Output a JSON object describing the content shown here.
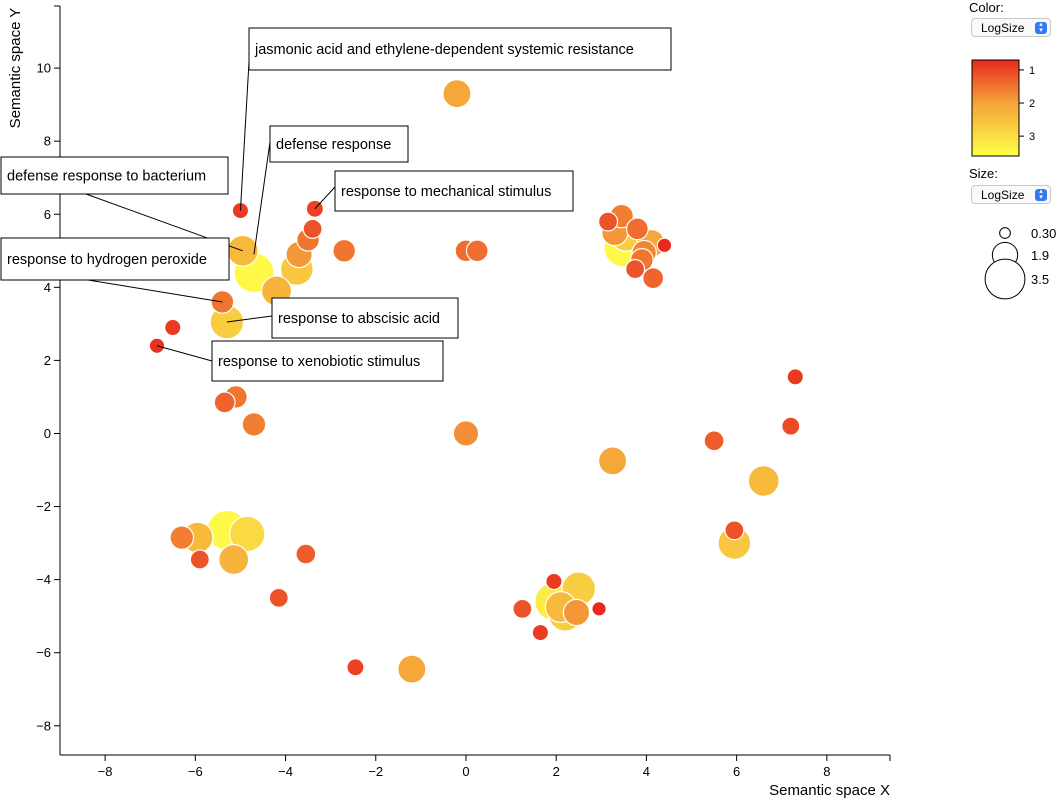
{
  "controls": {
    "color_label": "Color:",
    "color_value": "LogSize",
    "color_options": [
      "LogSize"
    ],
    "size_label": "Size:",
    "size_value": "LogSize",
    "size_options": [
      "LogSize"
    ]
  },
  "chart_data": {
    "type": "scatter",
    "xlabel": "Semantic space X",
    "ylabel": "Semantic space Y",
    "xlim": [
      -9,
      9.4
    ],
    "ylim": [
      -8.8,
      11.7
    ],
    "xticks": [
      -8,
      -6,
      -4,
      -2,
      0,
      2,
      4,
      6,
      8
    ],
    "yticks": [
      -8,
      -6,
      -4,
      -2,
      0,
      2,
      4,
      6,
      8,
      10
    ],
    "tick_labels_x": [
      "−8",
      "−6",
      "−4",
      "−2",
      "0",
      "2",
      "4",
      "6",
      "8"
    ],
    "tick_labels_y": [
      "−8",
      "−6",
      "−4",
      "−2",
      "0",
      "2",
      "4",
      "6",
      "8",
      "10"
    ],
    "color_scale": {
      "variable": "LogSize",
      "domain": [
        0.7,
        3.6
      ],
      "colors": [
        "#e8291e",
        "#f5a43a",
        "#ffff48"
      ],
      "ticks": [
        1,
        2,
        3
      ],
      "tick_labels": [
        "1",
        "2",
        "3"
      ]
    },
    "size_legend": {
      "variable": "LogSize",
      "values": [
        0.3,
        1.9,
        3.5
      ],
      "labels": [
        "0.30",
        "1.9",
        "3.5"
      ]
    },
    "points": [
      {
        "x": -5.0,
        "y": 6.1,
        "v": 0.9
      },
      {
        "x": -4.95,
        "y": 5.0,
        "v": 2.5
      },
      {
        "x": -4.7,
        "y": 4.4,
        "v": 3.5
      },
      {
        "x": -4.2,
        "y": 3.9,
        "v": 2.4
      },
      {
        "x": -3.7,
        "y": 4.9,
        "v": 2.0
      },
      {
        "x": -3.75,
        "y": 4.5,
        "v": 2.7
      },
      {
        "x": -3.5,
        "y": 5.3,
        "v": 1.6
      },
      {
        "x": -3.4,
        "y": 5.6,
        "v": 1.2
      },
      {
        "x": -3.35,
        "y": 6.15,
        "v": 1.0
      },
      {
        "x": -2.7,
        "y": 5.0,
        "v": 1.6
      },
      {
        "x": -5.4,
        "y": 3.6,
        "v": 1.6
      },
      {
        "x": -5.3,
        "y": 3.05,
        "v": 2.8
      },
      {
        "x": -6.5,
        "y": 2.9,
        "v": 0.9
      },
      {
        "x": -6.85,
        "y": 2.4,
        "v": 0.8
      },
      {
        "x": -5.1,
        "y": 1.0,
        "v": 1.6
      },
      {
        "x": -5.35,
        "y": 0.85,
        "v": 1.4
      },
      {
        "x": -4.7,
        "y": 0.25,
        "v": 1.7
      },
      {
        "x": -0.2,
        "y": 9.3,
        "v": 2.2
      },
      {
        "x": 0.0,
        "y": 5.0,
        "v": 1.5
      },
      {
        "x": 0.25,
        "y": 5.0,
        "v": 1.5
      },
      {
        "x": 3.45,
        "y": 5.95,
        "v": 1.7
      },
      {
        "x": 3.15,
        "y": 5.8,
        "v": 1.2
      },
      {
        "x": 3.3,
        "y": 5.5,
        "v": 2.0
      },
      {
        "x": 3.55,
        "y": 5.45,
        "v": 2.8
      },
      {
        "x": 3.8,
        "y": 5.6,
        "v": 1.5
      },
      {
        "x": 4.1,
        "y": 5.2,
        "v": 2.2
      },
      {
        "x": 3.95,
        "y": 4.95,
        "v": 1.8
      },
      {
        "x": 3.5,
        "y": 5.1,
        "v": 3.5
      },
      {
        "x": 3.9,
        "y": 4.75,
        "v": 1.6
      },
      {
        "x": 4.4,
        "y": 5.15,
        "v": 0.7
      },
      {
        "x": 3.75,
        "y": 4.5,
        "v": 1.2
      },
      {
        "x": 4.15,
        "y": 4.25,
        "v": 1.4
      },
      {
        "x": 0.0,
        "y": 0.0,
        "v": 2.1
      },
      {
        "x": 0.0,
        "y": 0.0,
        "v": 1.9
      },
      {
        "x": 3.25,
        "y": -0.75,
        "v": 2.2
      },
      {
        "x": 5.5,
        "y": -0.2,
        "v": 1.3
      },
      {
        "x": 7.2,
        "y": 0.2,
        "v": 1.1
      },
      {
        "x": 7.3,
        "y": 1.55,
        "v": 0.9
      },
      {
        "x": 6.6,
        "y": -1.3,
        "v": 2.5
      },
      {
        "x": 5.95,
        "y": -2.65,
        "v": 1.2
      },
      {
        "x": 5.95,
        "y": -3.0,
        "v": 2.7
      },
      {
        "x": -6.3,
        "y": -2.85,
        "v": 1.7
      },
      {
        "x": -5.95,
        "y": -2.85,
        "v": 2.5
      },
      {
        "x": -5.3,
        "y": -2.65,
        "v": 3.5
      },
      {
        "x": -4.85,
        "y": -2.75,
        "v": 3.0
      },
      {
        "x": -5.15,
        "y": -3.45,
        "v": 2.4
      },
      {
        "x": -5.9,
        "y": -3.45,
        "v": 1.2
      },
      {
        "x": -3.55,
        "y": -3.3,
        "v": 1.3
      },
      {
        "x": -4.15,
        "y": -4.5,
        "v": 1.2
      },
      {
        "x": -2.45,
        "y": -6.4,
        "v": 1.0
      },
      {
        "x": -1.2,
        "y": -6.45,
        "v": 2.2
      },
      {
        "x": 1.25,
        "y": -4.8,
        "v": 1.2
      },
      {
        "x": 1.95,
        "y": -4.05,
        "v": 0.9
      },
      {
        "x": 1.65,
        "y": -5.45,
        "v": 0.9
      },
      {
        "x": 2.95,
        "y": -4.8,
        "v": 0.7
      },
      {
        "x": 2.45,
        "y": -4.9,
        "v": 2.0
      },
      {
        "x": 2.5,
        "y": -4.25,
        "v": 2.8
      },
      {
        "x": 2.1,
        "y": -4.75,
        "v": 2.5
      },
      {
        "x": 2.2,
        "y": -4.95,
        "v": 2.8
      },
      {
        "x": 1.95,
        "y": -4.6,
        "v": 3.3
      }
    ],
    "annotations": [
      {
        "text": "jasmonic acid and ethylene-dependent systemic resistance",
        "x": -5.0,
        "y": 6.1
      },
      {
        "text": "defense response",
        "x": -4.7,
        "y": 4.9
      },
      {
        "text": "response to mechanical stimulus",
        "x": -3.35,
        "y": 6.15
      },
      {
        "text": "defense response to bacterium",
        "x": -4.95,
        "y": 5.0
      },
      {
        "text": "response to hydrogen peroxide",
        "x": -5.4,
        "y": 3.6
      },
      {
        "text": "response to abscisic acid",
        "x": -5.3,
        "y": 3.05
      },
      {
        "text": "response to xenobiotic stimulus",
        "x": -6.85,
        "y": 2.4
      }
    ]
  }
}
